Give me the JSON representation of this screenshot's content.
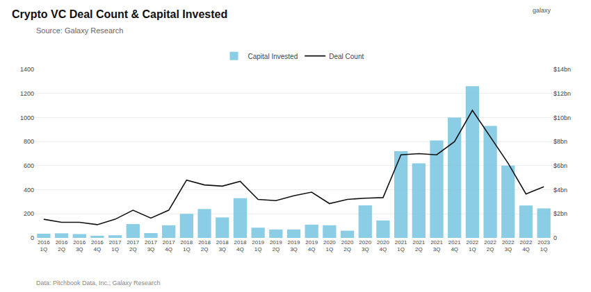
{
  "chart_data": {
    "type": "bar",
    "title": "Crypto VC Deal Count & Capital Invested",
    "subtitle": "Source: Galaxy Research",
    "annotations": [
      "Data: Pitchbook Data, Inc.; Galaxy Research",
      "galaxy"
    ],
    "categories": [
      "2016\n1Q",
      "2016\n2Q",
      "2016\n3Q",
      "2016\n4Q",
      "2017\n1Q",
      "2017\n2Q",
      "2017\n3Q",
      "2017\n4Q",
      "2018\n1Q",
      "2018\n2Q",
      "2018\n3Q",
      "2018\n4Q",
      "2019\n1Q",
      "2019\n2Q",
      "2019\n3Q",
      "2019\n4Q",
      "2020\n1Q",
      "2020\n2Q",
      "2020\n3Q",
      "2020\n4Q",
      "2021\n1Q",
      "2021\n2Q",
      "2021\n3Q",
      "2021\n4Q",
      "2022\n1Q",
      "2022\n2Q",
      "2022\n3Q",
      "2022\n4Q",
      "2023\n1Q"
    ],
    "series": [
      {
        "name": "Capital Invested",
        "type": "bar",
        "color": "#7EC8E3",
        "values": [
          35,
          38,
          32,
          18,
          22,
          115,
          40,
          105,
          200,
          240,
          170,
          330,
          85,
          70,
          70,
          110,
          105,
          60,
          270,
          145,
          720,
          620,
          810,
          1000,
          1260,
          930,
          600,
          270,
          245
        ]
      },
      {
        "name": "Deal Count",
        "type": "line",
        "color": "#111111",
        "values": [
          155,
          130,
          130,
          110,
          155,
          230,
          165,
          230,
          480,
          440,
          430,
          470,
          320,
          310,
          350,
          380,
          285,
          320,
          330,
          335,
          690,
          700,
          690,
          800,
          1060,
          840,
          620,
          365,
          425
        ]
      }
    ],
    "ylim": [
      0,
      1400
    ],
    "yticks": [
      0,
      200,
      400,
      600,
      800,
      1000,
      1200,
      1400
    ],
    "y2lim": [
      0,
      14
    ],
    "y2ticks": [
      0,
      {
        "value": 2,
        "label": "$2bn"
      },
      {
        "value": 4,
        "label": "$4bn"
      },
      {
        "value": 6,
        "label": "$6bn"
      },
      {
        "value": 8,
        "label": "$8bn"
      },
      {
        "value": 10,
        "label": "$10bn"
      },
      {
        "value": 12,
        "label": "$12bn"
      },
      {
        "value": 14,
        "label": "$14bn"
      }
    ],
    "grid": true,
    "legend": "top"
  }
}
